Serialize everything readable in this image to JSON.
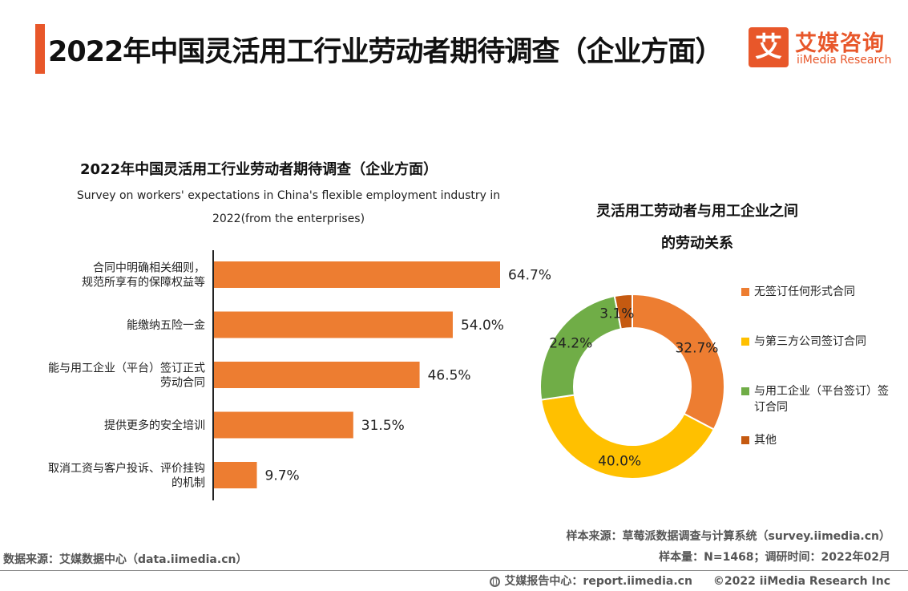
{
  "header": {
    "title": "2022年中国灵活用工行业劳动者期待调查（企业方面）",
    "logo_mark": "艾",
    "logo_cn": "艾媒咨询",
    "logo_en": "iiMedia Research"
  },
  "chart_data": [
    {
      "type": "bar",
      "orientation": "horizontal",
      "title": "2022年中国灵活用工行业劳动者期待调查（企业方面）",
      "subtitle": "Survey on workers' expectations in China's flexible employment industry in 2022(from the enterprises)",
      "categories": [
        [
          "合同中明确相关细则，",
          "规范所享有的保障权益等"
        ],
        [
          "能缴纳五险一金"
        ],
        [
          "能与用工企业（平台）签订正式",
          "劳动合同"
        ],
        [
          "提供更多的安全培训"
        ],
        [
          "取消工资与客户投诉、评价挂钩",
          "的机制"
        ]
      ],
      "values": [
        64.7,
        54.0,
        46.5,
        31.5,
        9.7
      ],
      "value_labels": [
        "64.7%",
        "54.0%",
        "46.5%",
        "31.5%",
        "9.7%"
      ],
      "xlim": [
        0,
        100
      ],
      "grid": false,
      "color": "#ed7d31"
    },
    {
      "type": "pie",
      "variant": "donut",
      "title_lines": [
        "灵活用工劳动者与用工企业之间",
        "的劳动关系"
      ],
      "slices": [
        {
          "name": "无签订任何形式合同",
          "value": 32.7,
          "label": "32.7%",
          "color": "#ed7d31"
        },
        {
          "name": "与第三方公司签订合同",
          "value": 40.0,
          "label": "40.0%",
          "color": "#ffc000"
        },
        {
          "name": "与用工企业（平台签订）签订合同",
          "value": 24.2,
          "label": "24.2%",
          "color": "#70ad47"
        },
        {
          "name": "其他",
          "value": 3.1,
          "label": "3.1%",
          "color": "#c55a11"
        }
      ],
      "legend": {
        "placement": "right",
        "items": [
          {
            "lines": [
              "无签订任何形式合同"
            ],
            "color": "#ed7d31"
          },
          {
            "lines": [
              "与第三方公司签订合同"
            ],
            "color": "#ffc000"
          },
          {
            "lines": [
              "与用工企业（平台签订）签",
              "订合同"
            ],
            "color": "#70ad47"
          },
          {
            "lines": [
              "其他"
            ],
            "color": "#c55a11"
          }
        ]
      }
    }
  ],
  "sources": {
    "data_source": "数据来源：艾媒数据中心（data.iimedia.cn）",
    "sample_source": "样本来源：草莓派数据调查与计算系统（survey.iimedia.cn）",
    "sample_info": "样本量：N=1468；调研时间：2022年02月"
  },
  "footer": {
    "report_center": "艾媒报告中心：report.iimedia.cn",
    "copyright": "©2022 iiMedia Research Inc",
    "icon": "globe-icon"
  }
}
